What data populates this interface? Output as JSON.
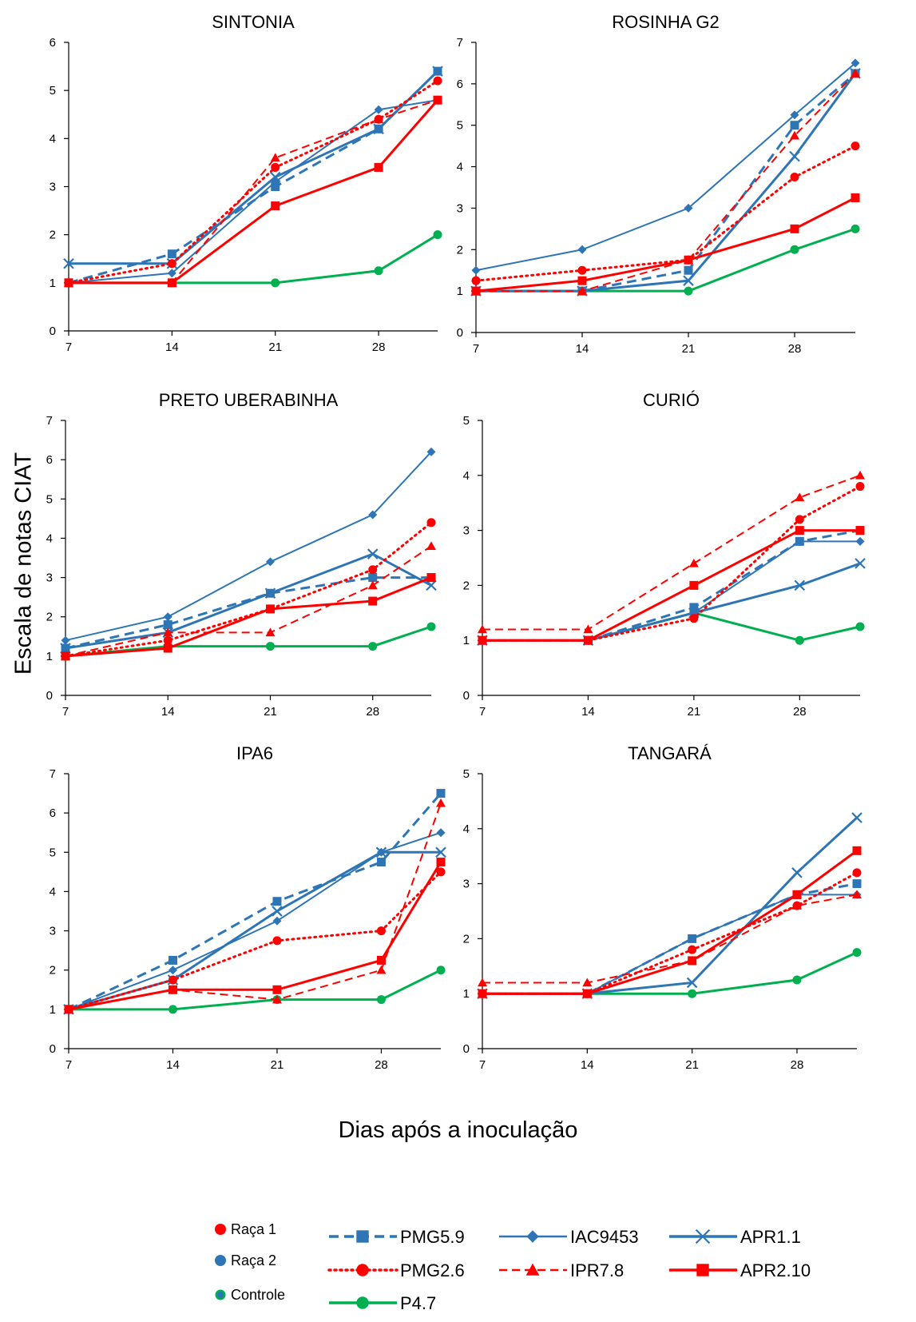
{
  "figure": {
    "ylabel": "Escala de notas CIAT",
    "xlabel": "Dias após a inoculação"
  },
  "colors": {
    "red": "#ff0000",
    "blue": "#2e75b6",
    "green": "#00b050"
  },
  "legend": {
    "race_markers": [
      {
        "label": "Raça 1",
        "color": "#ff0000"
      },
      {
        "label": "Raça 2",
        "color": "#2e75b6"
      },
      {
        "label": "Controle",
        "color": "#2e75b6",
        "ring": "#00b050"
      }
    ]
  },
  "chart_data": [
    {
      "type": "line",
      "title": "SINTONIA",
      "x": [
        7,
        14,
        21,
        28,
        32
      ],
      "xticks": [
        7,
        14,
        21,
        28
      ],
      "ylim": [
        0,
        6
      ],
      "yticks": [
        0,
        1,
        2,
        3,
        4,
        5,
        6
      ],
      "series": [
        {
          "name": "PMG5.9",
          "values": [
            1,
            1.6,
            3.0,
            4.2,
            5.4
          ]
        },
        {
          "name": "IAC9453",
          "values": [
            1,
            1.2,
            3.1,
            4.6,
            4.8
          ]
        },
        {
          "name": "APR1.1",
          "values": [
            1.4,
            1.4,
            3.2,
            4.2,
            5.4
          ]
        },
        {
          "name": "PMG2.6",
          "values": [
            1,
            1.4,
            3.4,
            4.4,
            5.2
          ]
        },
        {
          "name": "IPR7.8",
          "values": [
            1,
            1.0,
            3.6,
            4.4,
            4.8
          ]
        },
        {
          "name": "APR2.10",
          "values": [
            1,
            1.0,
            2.6,
            3.4,
            4.8
          ]
        },
        {
          "name": "P4.7",
          "values": [
            1,
            1.0,
            1.0,
            1.25,
            2.0
          ]
        }
      ]
    },
    {
      "type": "line",
      "title": "ROSINHA G2",
      "x": [
        7,
        14,
        21,
        28,
        32
      ],
      "xticks": [
        7,
        14,
        21,
        28
      ],
      "ylim": [
        0,
        7
      ],
      "yticks": [
        0,
        1,
        2,
        3,
        4,
        5,
        6,
        7
      ],
      "series": [
        {
          "name": "PMG5.9",
          "values": [
            1,
            1,
            1.5,
            5.0,
            6.25
          ]
        },
        {
          "name": "IAC9453",
          "values": [
            1.5,
            2.0,
            3.0,
            5.25,
            6.5
          ]
        },
        {
          "name": "APR1.1",
          "values": [
            1,
            1,
            1.25,
            4.25,
            6.25
          ]
        },
        {
          "name": "PMG2.6",
          "values": [
            1.25,
            1.5,
            1.75,
            3.75,
            4.5
          ]
        },
        {
          "name": "IPR7.8",
          "values": [
            1,
            1,
            1.75,
            4.75,
            6.25
          ]
        },
        {
          "name": "APR2.10",
          "values": [
            1,
            1.25,
            1.75,
            2.5,
            3.25
          ]
        },
        {
          "name": "P4.7",
          "values": [
            1,
            1,
            1,
            2.0,
            2.5
          ]
        }
      ]
    },
    {
      "type": "line",
      "title": "PRETO UBERABINHA",
      "x": [
        7,
        14,
        21,
        28,
        32
      ],
      "xticks": [
        7,
        14,
        21,
        28
      ],
      "ylim": [
        0,
        7
      ],
      "yticks": [
        0,
        1,
        2,
        3,
        4,
        5,
        6,
        7
      ],
      "series": [
        {
          "name": "PMG5.9",
          "values": [
            1.2,
            1.8,
            2.6,
            3.0,
            3.0
          ]
        },
        {
          "name": "IAC9453",
          "values": [
            1.4,
            2.0,
            3.4,
            4.6,
            6.2
          ]
        },
        {
          "name": "APR1.1",
          "values": [
            1.2,
            1.6,
            2.6,
            3.6,
            2.8
          ]
        },
        {
          "name": "PMG2.6",
          "values": [
            1,
            1.4,
            2.2,
            3.2,
            4.4
          ]
        },
        {
          "name": "IPR7.8",
          "values": [
            1,
            1.6,
            1.6,
            2.8,
            3.8
          ]
        },
        {
          "name": "APR2.10",
          "values": [
            1,
            1.2,
            2.2,
            2.4,
            3.0
          ]
        },
        {
          "name": "P4.7",
          "values": [
            1,
            1.25,
            1.25,
            1.25,
            1.75
          ]
        }
      ]
    },
    {
      "type": "line",
      "title": "CURIÓ",
      "x": [
        7,
        14,
        21,
        28,
        32
      ],
      "xticks": [
        7,
        14,
        21,
        28
      ],
      "ylim": [
        0,
        5
      ],
      "yticks": [
        0,
        1,
        2,
        3,
        4,
        5
      ],
      "series": [
        {
          "name": "PMG5.9",
          "values": [
            1,
            1,
            1.6,
            2.8,
            3.0
          ]
        },
        {
          "name": "IAC9453",
          "values": [
            1,
            1,
            1.5,
            2.8,
            2.8
          ]
        },
        {
          "name": "APR1.1",
          "values": [
            1,
            1,
            1.5,
            2.0,
            2.4
          ]
        },
        {
          "name": "PMG2.6",
          "values": [
            1,
            1,
            1.4,
            3.2,
            3.8
          ]
        },
        {
          "name": "IPR7.8",
          "values": [
            1.2,
            1.2,
            2.4,
            3.6,
            4.0
          ]
        },
        {
          "name": "APR2.10",
          "values": [
            1,
            1,
            2.0,
            3.0,
            3.0
          ]
        },
        {
          "name": "P4.7",
          "values": [
            1,
            1,
            1.5,
            1.0,
            1.25
          ]
        }
      ]
    },
    {
      "type": "line",
      "title": "IPA6",
      "x": [
        7,
        14,
        21,
        28,
        32
      ],
      "xticks": [
        7,
        14,
        21,
        28
      ],
      "ylim": [
        0,
        7
      ],
      "yticks": [
        0,
        1,
        2,
        3,
        4,
        5,
        6,
        7
      ],
      "series": [
        {
          "name": "PMG5.9",
          "values": [
            1,
            2.25,
            3.75,
            4.75,
            6.5
          ]
        },
        {
          "name": "IAC9453",
          "values": [
            1,
            2.0,
            3.25,
            5.0,
            5.5
          ]
        },
        {
          "name": "APR1.1",
          "values": [
            1,
            1.75,
            3.5,
            5.0,
            5.0
          ]
        },
        {
          "name": "PMG2.6",
          "values": [
            1,
            1.75,
            2.75,
            3.0,
            4.5
          ]
        },
        {
          "name": "IPR7.8",
          "values": [
            1,
            1.5,
            1.25,
            2.0,
            6.25
          ]
        },
        {
          "name": "APR2.10",
          "values": [
            1,
            1.5,
            1.5,
            2.25,
            4.75
          ]
        },
        {
          "name": "P4.7",
          "values": [
            1,
            1,
            1.25,
            1.25,
            2.0
          ]
        }
      ]
    },
    {
      "type": "line",
      "title": "TANGARÁ",
      "x": [
        7,
        14,
        21,
        28,
        32
      ],
      "xticks": [
        7,
        14,
        21,
        28
      ],
      "ylim": [
        0,
        5
      ],
      "yticks": [
        0,
        1,
        2,
        3,
        4,
        5
      ],
      "series": [
        {
          "name": "PMG5.9",
          "values": [
            1,
            1,
            2.0,
            2.8,
            3.0
          ]
        },
        {
          "name": "IAC9453",
          "values": [
            1,
            1,
            2.0,
            2.8,
            2.8
          ]
        },
        {
          "name": "APR1.1",
          "values": [
            1,
            1,
            1.2,
            3.2,
            4.2
          ]
        },
        {
          "name": "PMG2.6",
          "values": [
            1,
            1,
            1.8,
            2.6,
            3.2
          ]
        },
        {
          "name": "IPR7.8",
          "values": [
            1.2,
            1.2,
            1.6,
            2.6,
            2.8
          ]
        },
        {
          "name": "APR2.10",
          "values": [
            1,
            1,
            1.6,
            2.8,
            3.6
          ]
        },
        {
          "name": "P4.7",
          "values": [
            1,
            1,
            1.0,
            1.25,
            1.75
          ]
        }
      ]
    }
  ],
  "series_styles": {
    "PMG5.9": {
      "color": "#2e75b6",
      "dash": "12,7",
      "marker": "square",
      "width": 3
    },
    "IAC9453": {
      "color": "#2e75b6",
      "dash": "",
      "marker": "diamond",
      "width": 2
    },
    "APR1.1": {
      "color": "#2e75b6",
      "dash": "",
      "marker": "x",
      "width": 3
    },
    "PMG2.6": {
      "color": "#ff0000",
      "dash": "2,5",
      "marker": "circle",
      "width": 3
    },
    "IPR7.8": {
      "color": "#ff0000",
      "dash": "10,6",
      "marker": "triangle",
      "width": 2
    },
    "APR2.10": {
      "color": "#ff0000",
      "dash": "",
      "marker": "square",
      "width": 3
    },
    "P4.7": {
      "color": "#00b050",
      "dash": "",
      "marker": "circle",
      "width": 3
    }
  }
}
